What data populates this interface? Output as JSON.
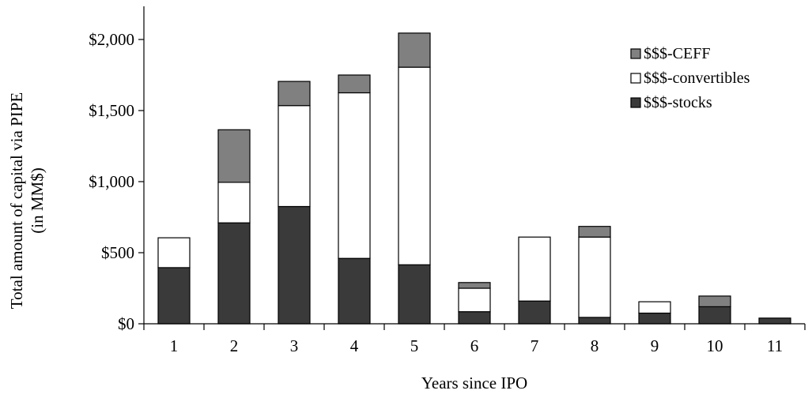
{
  "chart_data": {
    "type": "bar",
    "stacked": true,
    "title": "",
    "xlabel": "Years since IPO",
    "ylabel_line1": "Total amount of capital via PIPE",
    "ylabel_line2": "(in MM$)",
    "categories": [
      "1",
      "2",
      "3",
      "4",
      "5",
      "6",
      "7",
      "8",
      "9",
      "10",
      "11"
    ],
    "ylim": [
      0,
      2000
    ],
    "yticks": [
      0,
      500,
      1000,
      1500,
      2000
    ],
    "ytick_labels": [
      "$0",
      "$500",
      "$1,000",
      "$1,500",
      "$2,000"
    ],
    "grid": false,
    "legend_position": "top-right",
    "series": [
      {
        "name": "$$$-stocks",
        "color": "#3a3a3a",
        "values": [
          395,
          710,
          825,
          460,
          415,
          85,
          160,
          45,
          75,
          120,
          40
        ]
      },
      {
        "name": "$$$-convertibles",
        "color": "#ffffff",
        "values": [
          210,
          285,
          710,
          1165,
          1390,
          165,
          450,
          565,
          80,
          0,
          0
        ]
      },
      {
        "name": "$$$-CEFF",
        "color": "#808080",
        "values": [
          0,
          370,
          170,
          125,
          240,
          40,
          0,
          75,
          0,
          75,
          0
        ]
      }
    ],
    "legend_order": [
      "$$$-CEFF",
      "$$$-convertibles",
      "$$$-stocks"
    ]
  }
}
